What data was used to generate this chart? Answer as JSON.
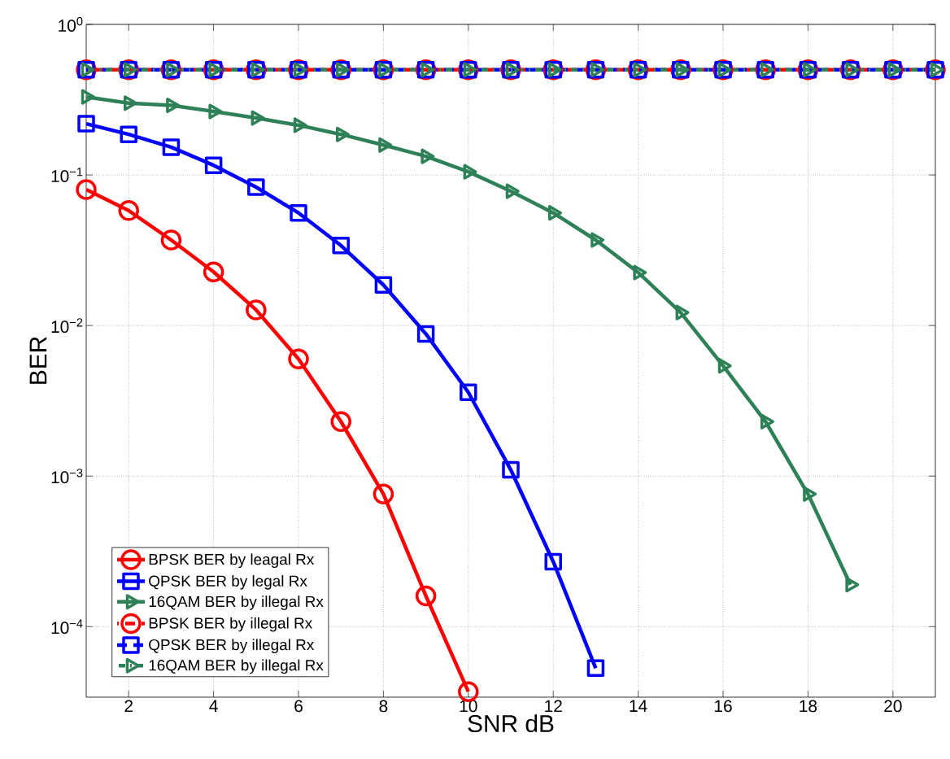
{
  "chart_data": {
    "type": "line",
    "xlabel": "SNR dB",
    "ylabel": "BER",
    "log": "y",
    "grid": true,
    "legend": "bottom left",
    "x": [
      1,
      2,
      3,
      4,
      5,
      6,
      7,
      8,
      9,
      10,
      11,
      12,
      13,
      14,
      15,
      16,
      17,
      18,
      19,
      20,
      21
    ],
    "xlim": [
      1,
      21
    ],
    "xticks": [
      2,
      4,
      6,
      8,
      10,
      12,
      14,
      16,
      18,
      20
    ],
    "ylim": [
      3.4e-05,
      1
    ],
    "yticks": [
      {
        "value": 1,
        "label": "10$^{0}$"
      },
      {
        "value": 0.1,
        "label": "10$^{−1}$"
      },
      {
        "value": 0.01,
        "label": "10$^{−2}$"
      },
      {
        "value": 0.001,
        "label": "10$^{−3}$"
      },
      {
        "value": 0.0001,
        "label": "10$^{−4}$"
      }
    ],
    "series": [
      {
        "name": "BPSK BER by leagal Rx",
        "color": "#ff0000",
        "marker": "circle",
        "line_style": "solid",
        "values": [
          0.08,
          0.058,
          0.037,
          0.0227,
          0.0127,
          0.006,
          0.0023,
          0.00076,
          0.00016,
          3.7e-05,
          null,
          null,
          null,
          null,
          null,
          null,
          null,
          null,
          null,
          null,
          null
        ]
      },
      {
        "name": "QPSK BER by legal Rx",
        "color": "#0000ff",
        "marker": "square",
        "line_style": "solid",
        "values": [
          0.219,
          0.186,
          0.153,
          0.116,
          0.083,
          0.056,
          0.034,
          0.0186,
          0.0088,
          0.0036,
          0.0011,
          0.00027,
          5.3e-05,
          null,
          null,
          null,
          null,
          null,
          null,
          null,
          null
        ]
      },
      {
        "name": "16QAM BER by illegal Rx",
        "color": "#2e8057",
        "marker": "triangle",
        "line_style": "solid",
        "values": [
          0.33,
          0.3,
          0.29,
          0.264,
          0.239,
          0.214,
          0.186,
          0.158,
          0.133,
          0.105,
          0.078,
          0.056,
          0.037,
          0.0225,
          0.0122,
          0.0054,
          0.0023,
          0.00076,
          0.00019,
          null,
          null
        ]
      },
      {
        "name": "BPSK BER by illegal Rx",
        "color": "#ff0000",
        "marker": "circle",
        "line_style": "dashed",
        "values": [
          0.5,
          0.5,
          0.5,
          0.5,
          0.5,
          0.5,
          0.5,
          0.5,
          0.5,
          0.5,
          0.5,
          0.5,
          0.5,
          0.5,
          0.5,
          0.5,
          0.5,
          0.5,
          0.5,
          0.5,
          0.5
        ]
      },
      {
        "name": "QPSK BER by illegal Rx",
        "color": "#0000ff",
        "marker": "square",
        "line_style": "dashed",
        "values": [
          0.5,
          0.5,
          0.5,
          0.5,
          0.5,
          0.5,
          0.5,
          0.5,
          0.5,
          0.5,
          0.5,
          0.5,
          0.5,
          0.5,
          0.5,
          0.5,
          0.5,
          0.5,
          0.5,
          0.5,
          0.5
        ]
      },
      {
        "name": "16QAM BER by illegal Rx",
        "color": "#2e8057",
        "marker": "triangle",
        "line_style": "dotted",
        "values": [
          0.5,
          0.5,
          0.5,
          0.5,
          0.5,
          0.5,
          0.5,
          0.5,
          0.5,
          0.5,
          0.5,
          0.5,
          0.5,
          0.5,
          0.5,
          0.5,
          0.5,
          0.5,
          0.5,
          0.5,
          0.5
        ]
      }
    ]
  }
}
